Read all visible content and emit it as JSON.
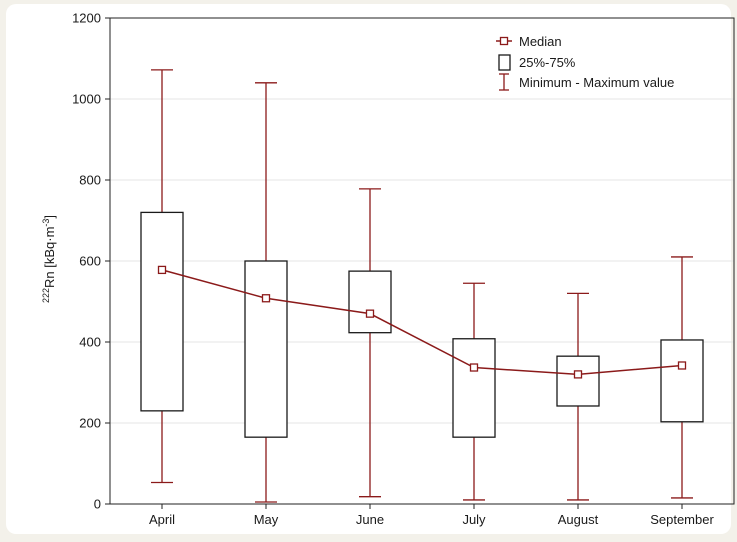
{
  "chart_data": {
    "type": "box",
    "categories": [
      "April",
      "May",
      "June",
      "July",
      "August",
      "September"
    ],
    "series": [
      {
        "name": "Median",
        "values": [
          578,
          508,
          470,
          337,
          320,
          342
        ]
      },
      {
        "name": "25%-75%",
        "values": [
          [
            230,
            720
          ],
          [
            165,
            600
          ],
          [
            423,
            575
          ],
          [
            165,
            408
          ],
          [
            242,
            365
          ],
          [
            203,
            405
          ]
        ]
      },
      {
        "name": "Minimum - Maximum value",
        "values": [
          [
            53,
            1072
          ],
          [
            5,
            1040
          ],
          [
            18,
            778
          ],
          [
            10,
            545
          ],
          [
            10,
            520
          ],
          [
            15,
            610
          ]
        ]
      }
    ],
    "xlabel": "",
    "ylabel_parts": {
      "sup": "222",
      "base": "Rn",
      "unit_pre": " [kBq·m",
      "unit_sup": "-3",
      "unit_post": "]"
    },
    "ylim": [
      0,
      1200
    ],
    "yticks": [
      0,
      200,
      400,
      600,
      800,
      1000,
      1200
    ],
    "grid": true,
    "legend_position": "top-right",
    "legend": [
      "Median",
      "25%-75%",
      "Minimum - Maximum value"
    ],
    "colors": {
      "line": "#8b1a1a",
      "box": "#1a1a1a",
      "grid": "#e6e6e6"
    }
  }
}
